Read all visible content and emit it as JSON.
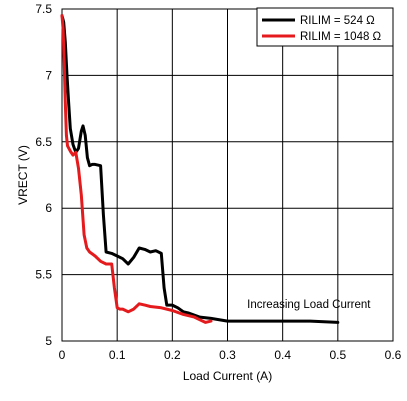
{
  "chart_data": {
    "type": "line",
    "xlabel": "Load Current (A)",
    "ylabel": "VRECT (V)",
    "xlim": [
      0,
      0.6
    ],
    "ylim": [
      5,
      7.5
    ],
    "xticks": [
      0,
      0.1,
      0.2,
      0.3,
      0.4,
      0.5,
      0.6
    ],
    "xtick_labels": [
      "0",
      "0.1",
      "0.2",
      "0.3",
      "0.4",
      "0.5",
      "0.6"
    ],
    "yticks": [
      5,
      5.5,
      6,
      6.5,
      7,
      7.5
    ],
    "ytick_labels": [
      "5",
      "5.5",
      "6",
      "6.5",
      "7",
      "7.5"
    ],
    "grid": true,
    "legend_position": "top-right",
    "annotations": [
      {
        "text": "Increasing Load Current",
        "x": 0.5,
        "y": 5.28
      }
    ],
    "series": [
      {
        "name": "RILIM = 524 Ω",
        "color": "#000000",
        "x": [
          0,
          0.003,
          0.006,
          0.009,
          0.012,
          0.015,
          0.02,
          0.025,
          0.03,
          0.035,
          0.038,
          0.042,
          0.046,
          0.05,
          0.055,
          0.06,
          0.07,
          0.075,
          0.08,
          0.09,
          0.1,
          0.11,
          0.12,
          0.13,
          0.14,
          0.15,
          0.16,
          0.17,
          0.18,
          0.185,
          0.19,
          0.2,
          0.21,
          0.22,
          0.23,
          0.25,
          0.27,
          0.3,
          0.35,
          0.4,
          0.45,
          0.5
        ],
        "y": [
          7.45,
          7.4,
          7.25,
          7.0,
          6.8,
          6.6,
          6.48,
          6.42,
          6.45,
          6.58,
          6.62,
          6.55,
          6.38,
          6.32,
          6.33,
          6.33,
          6.32,
          5.95,
          5.67,
          5.66,
          5.64,
          5.62,
          5.58,
          5.63,
          5.7,
          5.69,
          5.67,
          5.68,
          5.66,
          5.4,
          5.27,
          5.27,
          5.25,
          5.22,
          5.21,
          5.18,
          5.17,
          5.15,
          5.15,
          5.15,
          5.15,
          5.14
        ]
      },
      {
        "name": "RILIM = 1048 Ω",
        "color": "#e41a1c",
        "x": [
          0,
          0.002,
          0.004,
          0.006,
          0.008,
          0.01,
          0.015,
          0.02,
          0.025,
          0.03,
          0.035,
          0.04,
          0.045,
          0.05,
          0.06,
          0.07,
          0.08,
          0.09,
          0.095,
          0.1,
          0.105,
          0.11,
          0.12,
          0.13,
          0.14,
          0.15,
          0.16,
          0.18,
          0.2,
          0.22,
          0.24,
          0.25,
          0.26,
          0.27
        ],
        "y": [
          7.45,
          7.35,
          7.1,
          6.8,
          6.55,
          6.47,
          6.43,
          6.4,
          6.42,
          6.3,
          6.1,
          5.8,
          5.7,
          5.67,
          5.64,
          5.6,
          5.58,
          5.58,
          5.4,
          5.25,
          5.24,
          5.24,
          5.22,
          5.24,
          5.28,
          5.27,
          5.26,
          5.25,
          5.23,
          5.2,
          5.18,
          5.16,
          5.14,
          5.15
        ]
      }
    ]
  }
}
